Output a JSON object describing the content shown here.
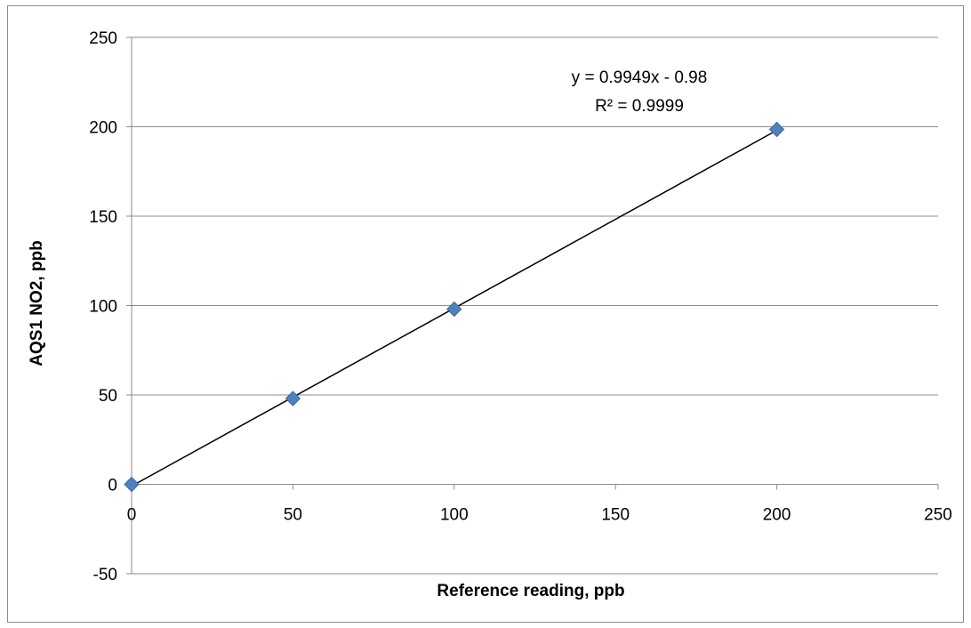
{
  "chart_data": {
    "type": "scatter",
    "title": "",
    "xlabel": "Reference reading, ppb",
    "ylabel": "AQS1 NO2, ppb",
    "xlim": [
      0,
      250
    ],
    "ylim": [
      -50,
      250
    ],
    "x_ticks": [
      0,
      50,
      100,
      150,
      200,
      250
    ],
    "y_ticks": [
      -50,
      0,
      50,
      100,
      150,
      200,
      250
    ],
    "grid": "horizontal",
    "legend": "none",
    "series": [
      {
        "x": [
          0,
          50,
          100,
          200
        ],
        "y": [
          0,
          48,
          98,
          198.5
        ],
        "marker": "diamond",
        "color": "#4f81bd"
      }
    ],
    "trendline": {
      "type": "linear",
      "slope": 0.9949,
      "intercept": -0.98,
      "x_range": [
        0,
        200
      ],
      "color": "#000000",
      "equation_label": "y = 0.9949x - 0.98",
      "r2_label": "R² = 0.9999"
    }
  }
}
